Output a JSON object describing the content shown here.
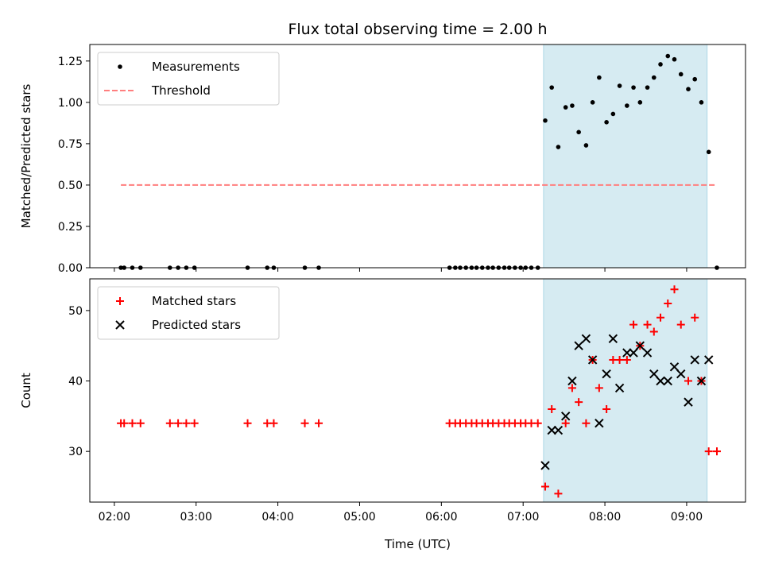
{
  "chart_data": [
    {
      "type": "scatter",
      "title": "Flux total observing time = 2.00 h",
      "xlabel": "",
      "ylabel": "Matched/Predicted stars",
      "xlim": [
        1.7,
        9.72
      ],
      "ylim": [
        0,
        1.35
      ],
      "x_tick_values": [
        2,
        3,
        4,
        5,
        6,
        7,
        8,
        9
      ],
      "y_ticks": [
        "0.00",
        "0.25",
        "0.50",
        "0.75",
        "1.00",
        "1.25"
      ],
      "legend_position": "upper-left",
      "shaded_span": [
        7.25,
        9.25
      ],
      "series": [
        {
          "name": "Measurements",
          "marker": "dot",
          "color": "#000000",
          "x": [
            2.08,
            2.12,
            2.22,
            2.32,
            2.68,
            2.78,
            2.88,
            2.98,
            3.63,
            3.87,
            3.95,
            4.33,
            4.5,
            6.1,
            6.17,
            6.23,
            6.3,
            6.37,
            6.43,
            6.5,
            6.57,
            6.63,
            6.7,
            6.77,
            6.83,
            6.9,
            6.97,
            7.03,
            7.1,
            7.18,
            7.27,
            7.35,
            7.43,
            7.52,
            7.6,
            7.68,
            7.77,
            7.85,
            7.93,
            8.02,
            8.1,
            8.18,
            8.27,
            8.35,
            8.43,
            8.52,
            8.6,
            8.68,
            8.77,
            8.85,
            8.93,
            9.02,
            9.1,
            9.18,
            9.27,
            9.37
          ],
          "y": [
            0,
            0,
            0,
            0,
            0,
            0,
            0,
            0,
            0,
            0,
            0,
            0,
            0,
            0,
            0,
            0,
            0,
            0,
            0,
            0,
            0,
            0,
            0,
            0,
            0,
            0,
            0,
            0,
            0,
            0,
            0.89,
            1.09,
            0.73,
            0.97,
            0.98,
            0.82,
            0.74,
            1.0,
            1.15,
            0.88,
            0.93,
            1.1,
            0.98,
            1.09,
            1.0,
            1.09,
            1.15,
            1.23,
            1.28,
            1.26,
            1.17,
            1.08,
            1.14,
            1.0,
            0.7,
            0
          ]
        },
        {
          "name": "Threshold",
          "marker": "dashed-line",
          "color": "#ff7f7f",
          "x": [
            2.08,
            9.37
          ],
          "y": [
            0.5,
            0.5
          ]
        }
      ]
    },
    {
      "type": "scatter",
      "title": "",
      "xlabel": "Time (UTC)",
      "ylabel": "Count",
      "xlim": [
        1.7,
        9.72
      ],
      "ylim": [
        22.8,
        54.5
      ],
      "x_tick_values": [
        2,
        3,
        4,
        5,
        6,
        7,
        8,
        9
      ],
      "x_ticks": [
        "02:00",
        "03:00",
        "04:00",
        "05:00",
        "06:00",
        "07:00",
        "08:00",
        "09:00"
      ],
      "y_ticks": [
        "30",
        "40",
        "50"
      ],
      "legend_position": "upper-left",
      "shaded_span": [
        7.25,
        9.25
      ],
      "series": [
        {
          "name": "Matched stars",
          "marker": "plus",
          "color": "#ff0000",
          "x": [
            2.08,
            2.12,
            2.22,
            2.32,
            2.68,
            2.78,
            2.88,
            2.98,
            3.63,
            3.87,
            3.95,
            4.33,
            4.5,
            6.1,
            6.17,
            6.23,
            6.3,
            6.37,
            6.43,
            6.5,
            6.57,
            6.63,
            6.7,
            6.77,
            6.83,
            6.9,
            6.97,
            7.03,
            7.1,
            7.18,
            7.27,
            7.35,
            7.43,
            7.52,
            7.6,
            7.68,
            7.77,
            7.85,
            7.93,
            8.02,
            8.1,
            8.18,
            8.27,
            8.35,
            8.43,
            8.52,
            8.6,
            8.68,
            8.77,
            8.85,
            8.93,
            9.02,
            9.1,
            9.18,
            9.27,
            9.37
          ],
          "y": [
            34,
            34,
            34,
            34,
            34,
            34,
            34,
            34,
            34,
            34,
            34,
            34,
            34,
            34,
            34,
            34,
            34,
            34,
            34,
            34,
            34,
            34,
            34,
            34,
            34,
            34,
            34,
            34,
            34,
            34,
            25,
            36,
            24,
            34,
            39,
            37,
            34,
            43,
            39,
            36,
            43,
            43,
            43,
            48,
            45,
            48,
            47,
            49,
            51,
            53,
            48,
            40,
            49,
            40,
            30,
            30
          ]
        },
        {
          "name": "Predicted stars",
          "marker": "x",
          "color": "#000000",
          "x": [
            7.27,
            7.35,
            7.43,
            7.52,
            7.6,
            7.68,
            7.77,
            7.85,
            7.93,
            8.02,
            8.1,
            8.18,
            8.27,
            8.35,
            8.43,
            8.52,
            8.6,
            8.68,
            8.77,
            8.85,
            8.93,
            9.02,
            9.1,
            9.18,
            9.27
          ],
          "y": [
            28,
            33,
            33,
            35,
            40,
            45,
            46,
            43,
            34,
            41,
            46,
            39,
            44,
            44,
            45,
            44,
            41,
            40,
            40,
            42,
            41,
            37,
            43,
            40,
            43
          ]
        }
      ]
    }
  ]
}
